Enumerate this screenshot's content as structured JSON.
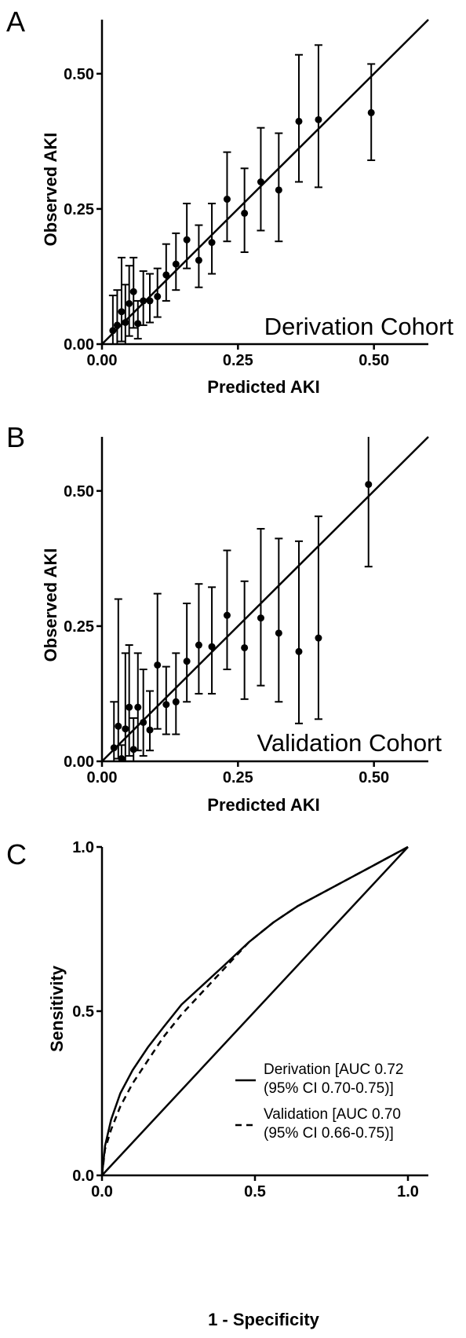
{
  "chart_data": [
    {
      "type": "scatter",
      "panel": "A",
      "xlabel": "Predicted AKI",
      "ylabel": "Observed AKI",
      "annotation": "Derivation Cohort",
      "xlim": [
        0,
        0.6
      ],
      "ylim": [
        0,
        0.6
      ],
      "xticks": [
        "0.00",
        "0.25",
        "0.50"
      ],
      "yticks": [
        "0.00",
        "0.25",
        "0.50"
      ],
      "identity_line": true,
      "points": [
        {
          "x": 0.02,
          "y": 0.025,
          "lo": 0.0,
          "hi": 0.09
        },
        {
          "x": 0.028,
          "y": 0.035,
          "lo": 0.0,
          "hi": 0.1
        },
        {
          "x": 0.036,
          "y": 0.06,
          "lo": 0.005,
          "hi": 0.16
        },
        {
          "x": 0.043,
          "y": 0.04,
          "lo": 0.0,
          "hi": 0.11
        },
        {
          "x": 0.05,
          "y": 0.075,
          "lo": 0.015,
          "hi": 0.145
        },
        {
          "x": 0.058,
          "y": 0.097,
          "lo": 0.03,
          "hi": 0.16
        },
        {
          "x": 0.066,
          "y": 0.038,
          "lo": 0.01,
          "hi": 0.08
        },
        {
          "x": 0.076,
          "y": 0.08,
          "lo": 0.035,
          "hi": 0.135
        },
        {
          "x": 0.088,
          "y": 0.08,
          "lo": 0.04,
          "hi": 0.13
        },
        {
          "x": 0.102,
          "y": 0.088,
          "lo": 0.05,
          "hi": 0.14
        },
        {
          "x": 0.118,
          "y": 0.128,
          "lo": 0.08,
          "hi": 0.185
        },
        {
          "x": 0.136,
          "y": 0.148,
          "lo": 0.1,
          "hi": 0.205
        },
        {
          "x": 0.156,
          "y": 0.193,
          "lo": 0.14,
          "hi": 0.26
        },
        {
          "x": 0.178,
          "y": 0.155,
          "lo": 0.105,
          "hi": 0.22
        },
        {
          "x": 0.202,
          "y": 0.188,
          "lo": 0.13,
          "hi": 0.26
        },
        {
          "x": 0.23,
          "y": 0.268,
          "lo": 0.19,
          "hi": 0.355
        },
        {
          "x": 0.262,
          "y": 0.242,
          "lo": 0.17,
          "hi": 0.325
        },
        {
          "x": 0.292,
          "y": 0.3,
          "lo": 0.21,
          "hi": 0.4
        },
        {
          "x": 0.325,
          "y": 0.285,
          "lo": 0.19,
          "hi": 0.39
        },
        {
          "x": 0.362,
          "y": 0.412,
          "lo": 0.3,
          "hi": 0.535
        },
        {
          "x": 0.398,
          "y": 0.415,
          "lo": 0.29,
          "hi": 0.553
        },
        {
          "x": 0.495,
          "y": 0.428,
          "lo": 0.34,
          "hi": 0.518
        }
      ]
    },
    {
      "type": "scatter",
      "panel": "B",
      "xlabel": "Predicted AKI",
      "ylabel": "Observed AKI",
      "annotation": "Validation Cohort",
      "xlim": [
        0,
        0.6
      ],
      "ylim": [
        0,
        0.6
      ],
      "xticks": [
        "0.00",
        "0.25",
        "0.50"
      ],
      "yticks": [
        "0.00",
        "0.25",
        "0.50"
      ],
      "identity_line": true,
      "points": [
        {
          "x": 0.022,
          "y": 0.025,
          "lo": 0.0,
          "hi": 0.11
        },
        {
          "x": 0.03,
          "y": 0.065,
          "lo": 0.005,
          "hi": 0.3
        },
        {
          "x": 0.036,
          "y": 0.005,
          "lo": 0.0,
          "hi": 0.03
        },
        {
          "x": 0.043,
          "y": 0.06,
          "lo": 0.0,
          "hi": 0.2
        },
        {
          "x": 0.05,
          "y": 0.1,
          "lo": 0.01,
          "hi": 0.215
        },
        {
          "x": 0.058,
          "y": 0.022,
          "lo": 0.0,
          "hi": 0.08
        },
        {
          "x": 0.066,
          "y": 0.1,
          "lo": 0.02,
          "hi": 0.2
        },
        {
          "x": 0.076,
          "y": 0.072,
          "lo": 0.01,
          "hi": 0.17
        },
        {
          "x": 0.088,
          "y": 0.058,
          "lo": 0.02,
          "hi": 0.13
        },
        {
          "x": 0.102,
          "y": 0.178,
          "lo": 0.06,
          "hi": 0.31
        },
        {
          "x": 0.118,
          "y": 0.105,
          "lo": 0.05,
          "hi": 0.175
        },
        {
          "x": 0.136,
          "y": 0.11,
          "lo": 0.05,
          "hi": 0.2
        },
        {
          "x": 0.156,
          "y": 0.185,
          "lo": 0.11,
          "hi": 0.292
        },
        {
          "x": 0.178,
          "y": 0.215,
          "lo": 0.125,
          "hi": 0.328
        },
        {
          "x": 0.202,
          "y": 0.212,
          "lo": 0.125,
          "hi": 0.322
        },
        {
          "x": 0.23,
          "y": 0.27,
          "lo": 0.17,
          "hi": 0.39
        },
        {
          "x": 0.262,
          "y": 0.21,
          "lo": 0.115,
          "hi": 0.333
        },
        {
          "x": 0.292,
          "y": 0.265,
          "lo": 0.14,
          "hi": 0.43
        },
        {
          "x": 0.325,
          "y": 0.237,
          "lo": 0.11,
          "hi": 0.412
        },
        {
          "x": 0.362,
          "y": 0.203,
          "lo": 0.07,
          "hi": 0.407
        },
        {
          "x": 0.398,
          "y": 0.228,
          "lo": 0.078,
          "hi": 0.453
        },
        {
          "x": 0.49,
          "y": 0.512,
          "lo": 0.36,
          "hi": 0.61
        }
      ]
    },
    {
      "type": "line",
      "panel": "C",
      "xlabel": "1 - Specificity",
      "ylabel": "Sensitivity",
      "xlim": [
        0,
        1.0
      ],
      "ylim": [
        0,
        1.0
      ],
      "xticks": [
        "0.0",
        "0.5",
        "1.0"
      ],
      "yticks": [
        "0.0",
        "0.5",
        "1.0"
      ],
      "identity_line": true,
      "legend_position": "bottom-right",
      "series": [
        {
          "name": "Derivation [AUC 0.72",
          "name_line2": "(95% CI 0.70-0.75)]",
          "style": "solid",
          "x": [
            0,
            0.01,
            0.03,
            0.06,
            0.1,
            0.15,
            0.2,
            0.26,
            0.33,
            0.4,
            0.48,
            0.56,
            0.64,
            0.72,
            0.8,
            0.88,
            0.94,
            1.0
          ],
          "y": [
            0,
            0.09,
            0.17,
            0.25,
            0.32,
            0.39,
            0.45,
            0.52,
            0.58,
            0.64,
            0.71,
            0.77,
            0.82,
            0.86,
            0.9,
            0.94,
            0.97,
            1.0
          ]
        },
        {
          "name": "Validation [AUC 0.70",
          "name_line2": "(95% CI 0.66-0.75)]",
          "style": "dashed",
          "x": [
            0,
            0.01,
            0.03,
            0.06,
            0.1,
            0.15,
            0.2,
            0.26,
            0.33,
            0.4,
            0.48,
            0.56,
            0.64,
            0.72,
            0.8,
            0.88,
            0.94,
            1.0
          ],
          "y": [
            0,
            0.08,
            0.14,
            0.21,
            0.28,
            0.35,
            0.42,
            0.49,
            0.56,
            0.63,
            0.71,
            0.77,
            0.82,
            0.86,
            0.9,
            0.94,
            0.97,
            1.0
          ]
        }
      ]
    }
  ]
}
